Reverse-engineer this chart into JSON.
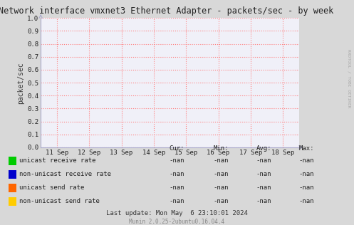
{
  "title": "Network interface vmxnet3 Ethernet Adapter - packets/sec - by week",
  "ylabel": "packet/sec",
  "watermark": "RRDTOOL / TOBI OETIKER",
  "footer": "Munin 2.0.25-2ubuntu0.16.04.4",
  "last_update": "Last update: Mon May  6 23:10:01 2024",
  "xlim_dates": [
    "11 Sep",
    "12 Sep",
    "13 Sep",
    "14 Sep",
    "15 Sep",
    "16 Sep",
    "17 Sep",
    "18 Sep"
  ],
  "ylim": [
    0.0,
    1.0
  ],
  "yticks": [
    0.0,
    0.1,
    0.2,
    0.3,
    0.4,
    0.5,
    0.6,
    0.7,
    0.8,
    0.9,
    1.0
  ],
  "background_color": "#d8d8d8",
  "plot_bg_color": "#f0f0f8",
  "grid_color": "#ff8080",
  "axis_color": "#aaaacc",
  "legend_items": [
    {
      "label": "unicast receive rate",
      "color": "#00cc00"
    },
    {
      "label": "non-unicast receive rate",
      "color": "#0000cc"
    },
    {
      "label": "unicast send rate",
      "color": "#ff6600"
    },
    {
      "label": "non-unicast send rate",
      "color": "#ffcc00"
    }
  ],
  "stats_header": [
    "Cur:",
    "Min:",
    "Avg:",
    "Max:"
  ],
  "stats_values": [
    "-nan",
    "-nan",
    "-nan",
    "-nan"
  ],
  "font_family": "DejaVu Sans Mono"
}
